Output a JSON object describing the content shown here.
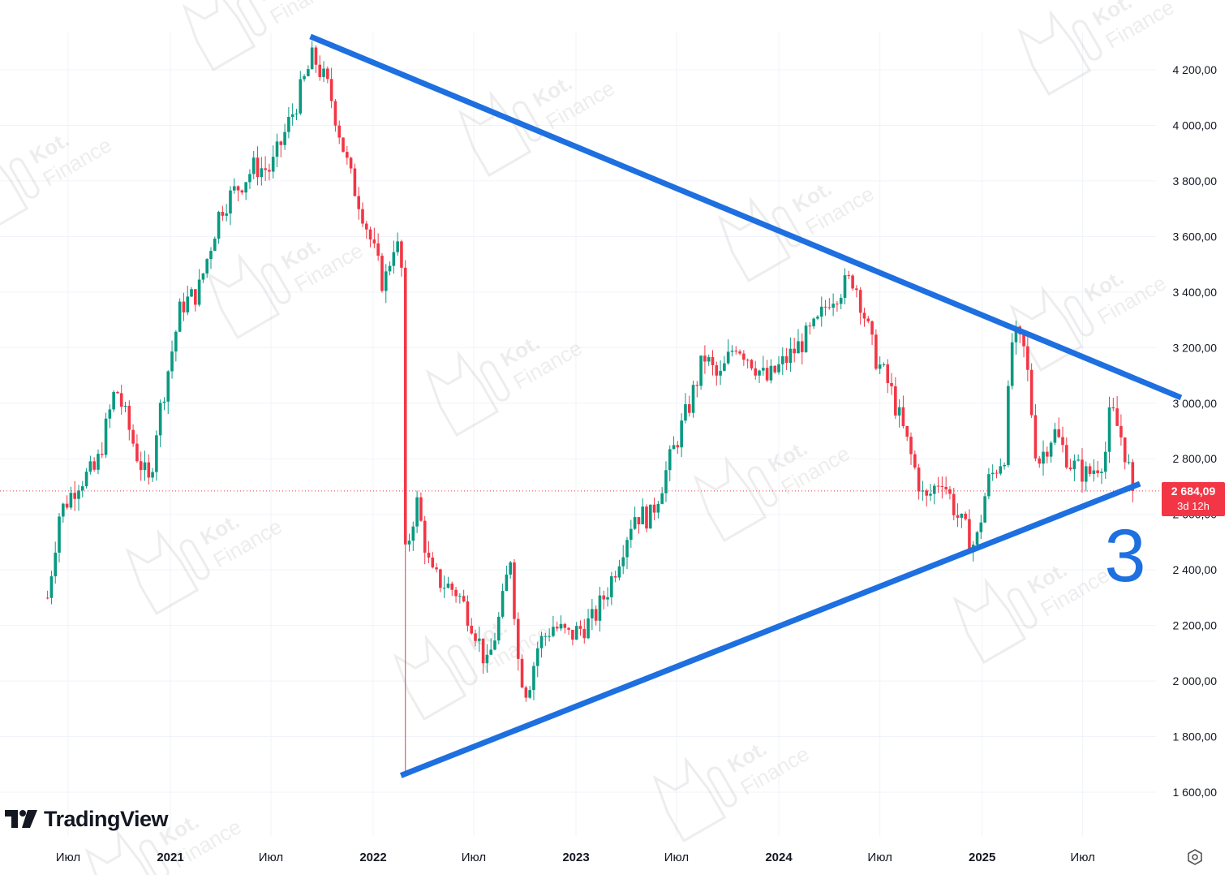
{
  "chart_data": {
    "type": "candlestick",
    "interval": "weekly",
    "y_axis": {
      "ticks": [
        "1 600,00",
        "1 800,00",
        "2 000,00",
        "2 200,00",
        "2 400,00",
        "2 600,00",
        "2 800,00",
        "3 000,00",
        "3 200,00",
        "3 400,00",
        "3 600,00",
        "3 800,00",
        "4 000,00",
        "4 200,00"
      ],
      "range": [
        1450,
        4330
      ]
    },
    "x_axis": {
      "ticks": [
        "Июл",
        "2021",
        "Июл",
        "2022",
        "Июл",
        "2023",
        "Июл",
        "2024",
        "Июл",
        "2025",
        "Июл"
      ],
      "range": [
        "2020-05",
        "2026-01"
      ]
    },
    "candle_colors": {
      "up": "#089981",
      "down": "#f23645"
    },
    "price_path": [
      {
        "date": "2020-05-25",
        "price": 2300
      },
      {
        "date": "2020-06-15",
        "price": 2600
      },
      {
        "date": "2020-07-20",
        "price": 2720
      },
      {
        "date": "2020-08-20",
        "price": 2760
      },
      {
        "date": "2020-09-25",
        "price": 3060
      },
      {
        "date": "2020-11-01",
        "price": 2820
      },
      {
        "date": "2020-11-25",
        "price": 2700
      },
      {
        "date": "2020-12-05",
        "price": 2890
      },
      {
        "date": "2021-01-20",
        "price": 3350
      },
      {
        "date": "2021-02-20",
        "price": 3400
      },
      {
        "date": "2021-04-01",
        "price": 3700
      },
      {
        "date": "2021-06-01",
        "price": 3850
      },
      {
        "date": "2021-07-01",
        "price": 3840
      },
      {
        "date": "2021-08-10",
        "price": 4050
      },
      {
        "date": "2021-09-15",
        "price": 4250
      },
      {
        "date": "2021-10-15",
        "price": 4120
      },
      {
        "date": "2021-11-20",
        "price": 3820
      },
      {
        "date": "2021-12-10",
        "price": 3710
      },
      {
        "date": "2022-01-20",
        "price": 3420
      },
      {
        "date": "2022-02-10",
        "price": 3600
      },
      {
        "date": "2022-02-21",
        "price": 3480
      },
      {
        "date": "2022-02-28",
        "price": 2450
      },
      {
        "date": "2022-03-20",
        "price": 2650
      },
      {
        "date": "2022-04-15",
        "price": 2380
      },
      {
        "date": "2022-06-01",
        "price": 2320
      },
      {
        "date": "2022-07-01",
        "price": 2200
      },
      {
        "date": "2022-07-25",
        "price": 2050
      },
      {
        "date": "2022-08-20",
        "price": 2260
      },
      {
        "date": "2022-09-05",
        "price": 2450
      },
      {
        "date": "2022-09-20",
        "price": 2050
      },
      {
        "date": "2022-10-05",
        "price": 1960
      },
      {
        "date": "2022-10-25",
        "price": 2130
      },
      {
        "date": "2022-11-20",
        "price": 2200
      },
      {
        "date": "2022-12-20",
        "price": 2160
      },
      {
        "date": "2023-02-01",
        "price": 2220
      },
      {
        "date": "2023-03-01",
        "price": 2340
      },
      {
        "date": "2023-04-15",
        "price": 2600
      },
      {
        "date": "2023-05-15",
        "price": 2590
      },
      {
        "date": "2023-06-20",
        "price": 2800
      },
      {
        "date": "2023-07-25",
        "price": 3000
      },
      {
        "date": "2023-08-20",
        "price": 3170
      },
      {
        "date": "2023-09-15",
        "price": 3080
      },
      {
        "date": "2023-10-15",
        "price": 3220
      },
      {
        "date": "2023-11-15",
        "price": 3150
      },
      {
        "date": "2023-12-10",
        "price": 3080
      },
      {
        "date": "2024-01-25",
        "price": 3180
      },
      {
        "date": "2024-03-10",
        "price": 3280
      },
      {
        "date": "2024-04-01",
        "price": 3380
      },
      {
        "date": "2024-05-15",
        "price": 3450
      },
      {
        "date": "2024-05-30",
        "price": 3350
      },
      {
        "date": "2024-06-20",
        "price": 3180
      },
      {
        "date": "2024-07-20",
        "price": 3050
      },
      {
        "date": "2024-08-20",
        "price": 2850
      },
      {
        "date": "2024-09-20",
        "price": 2640
      },
      {
        "date": "2024-10-20",
        "price": 2740
      },
      {
        "date": "2024-11-20",
        "price": 2580
      },
      {
        "date": "2024-12-20",
        "price": 2480
      },
      {
        "date": "2025-01-10",
        "price": 2710
      },
      {
        "date": "2025-02-10",
        "price": 2820
      },
      {
        "date": "2025-02-25",
        "price": 3250
      },
      {
        "date": "2025-03-20",
        "price": 3180
      },
      {
        "date": "2025-04-10",
        "price": 2780
      },
      {
        "date": "2025-05-10",
        "price": 2900
      },
      {
        "date": "2025-06-10",
        "price": 2780
      },
      {
        "date": "2025-07-10",
        "price": 2740
      },
      {
        "date": "2025-08-10",
        "price": 2810
      },
      {
        "date": "2025-08-20",
        "price": 2980
      },
      {
        "date": "2025-09-10",
        "price": 2870
      },
      {
        "date": "2025-10-01",
        "price": 2684.09
      }
    ],
    "trendlines": [
      {
        "name": "upper",
        "color": "#1e6fe0",
        "from": {
          "date": "2021-09-10",
          "price": 4320
        },
        "to": {
          "date": "2025-12-25",
          "price": 3020
        }
      },
      {
        "name": "lower",
        "color": "#1e6fe0",
        "from": {
          "date": "2022-02-20",
          "price": 1660
        },
        "to": {
          "date": "2025-10-12",
          "price": 2710
        }
      }
    ],
    "current_price": {
      "value": "2 684,09",
      "countdown": "3d 12h",
      "price": 2684.09
    },
    "annotation": "3"
  },
  "branding": {
    "logo": "TradingView"
  },
  "watermark": {
    "line1": "Kot.",
    "line2": "Finance"
  },
  "icons": {
    "settings": "settings-icon"
  }
}
